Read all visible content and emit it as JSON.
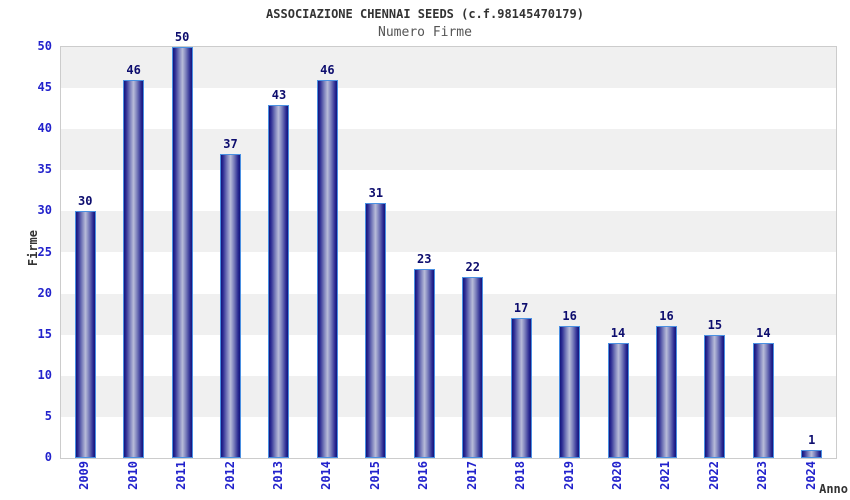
{
  "chart_data": {
    "type": "bar",
    "title": "ASSOCIAZIONE CHENNAI SEEDS (c.f.98145470179)",
    "subtitle": "Numero Firme",
    "xlabel": "Anno",
    "ylabel": "Firme",
    "categories": [
      "2009",
      "2010",
      "2011",
      "2012",
      "2013",
      "2014",
      "2015",
      "2016",
      "2017",
      "2018",
      "2019",
      "2020",
      "2021",
      "2022",
      "2023",
      "2024"
    ],
    "values": [
      30,
      46,
      50,
      37,
      43,
      46,
      31,
      23,
      22,
      17,
      16,
      14,
      16,
      15,
      14,
      1
    ],
    "ylim": [
      0,
      50
    ],
    "ytick_step": 5,
    "grid": "horizontal-bands-alternating",
    "legend": "none",
    "colors": {
      "band_gray": "#f0f0f0",
      "band_white": "#ffffff",
      "plot_border": "#cccccc",
      "axis_tick_text": "#2222cc",
      "value_label_text": "#0d0d6e",
      "bar_edge": "#14147c",
      "bar_dark": "#2a2a92",
      "bar_mid": "#7377b8",
      "bar_center": "#b9bcd9",
      "bar_border": "#4a90e2",
      "title_text": "#333333",
      "subtitle_text": "#555555"
    }
  }
}
